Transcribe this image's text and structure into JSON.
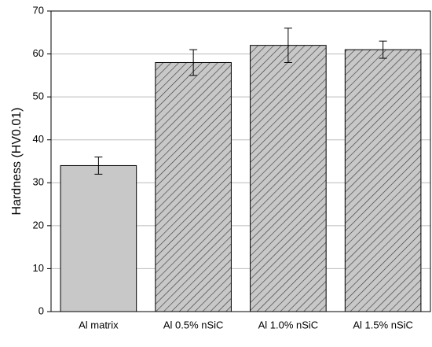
{
  "chart_data": {
    "type": "bar",
    "y_label": "Hardness (HV0.01)",
    "categories": [
      "Al matrix",
      "Al 0.5% nSiC",
      "Al 1.0% nSiC",
      "Al 1.5% nSiC"
    ],
    "values": [
      34,
      58,
      62,
      61
    ],
    "errors": [
      2,
      3,
      4,
      2
    ],
    "hatch": [
      false,
      true,
      true,
      true
    ],
    "color": "#c8c8c8",
    "ylim": [
      0,
      70
    ],
    "yticks": [
      0,
      10,
      20,
      30,
      40,
      50,
      60,
      70
    ],
    "grid": true
  }
}
